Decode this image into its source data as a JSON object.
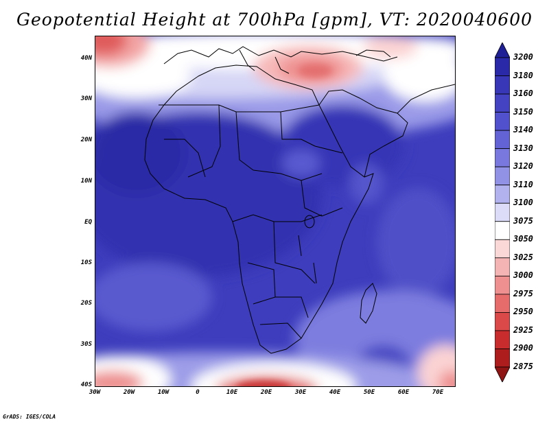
{
  "title": "Geopotential Height at 700hPa [gpm], VT: 2020040600",
  "footer": "GrADS: IGES/COLA",
  "map": {
    "lat_labels": [
      "40N",
      "30N",
      "20N",
      "10N",
      "EQ",
      "10S",
      "20S",
      "30S",
      "40S"
    ],
    "lon_labels": [
      "30W",
      "20W",
      "10W",
      "0",
      "10E",
      "20E",
      "30E",
      "40E",
      "50E",
      "60E",
      "70E"
    ]
  },
  "colorbar": {
    "levels": [
      "3200",
      "3180",
      "3160",
      "3150",
      "3140",
      "3130",
      "3120",
      "3110",
      "3100",
      "3075",
      "3050",
      "3025",
      "3000",
      "2975",
      "2950",
      "2925",
      "2900",
      "2875"
    ],
    "colors": [
      "#1f1f96",
      "#2a2aa8",
      "#3737b7",
      "#4444c3",
      "#5151cd",
      "#6363d6",
      "#7878de",
      "#9191e6",
      "#b2b2ef",
      "#dcdcf8",
      "#ffffff",
      "#fbd8d8",
      "#f5b4b4",
      "#ee9090",
      "#e66b6b",
      "#dc4949",
      "#c92c2c",
      "#ad1d1d",
      "#8f1414"
    ],
    "top_arrow_color": "#1f1f96",
    "bottom_arrow_color": "#8f1414"
  }
}
